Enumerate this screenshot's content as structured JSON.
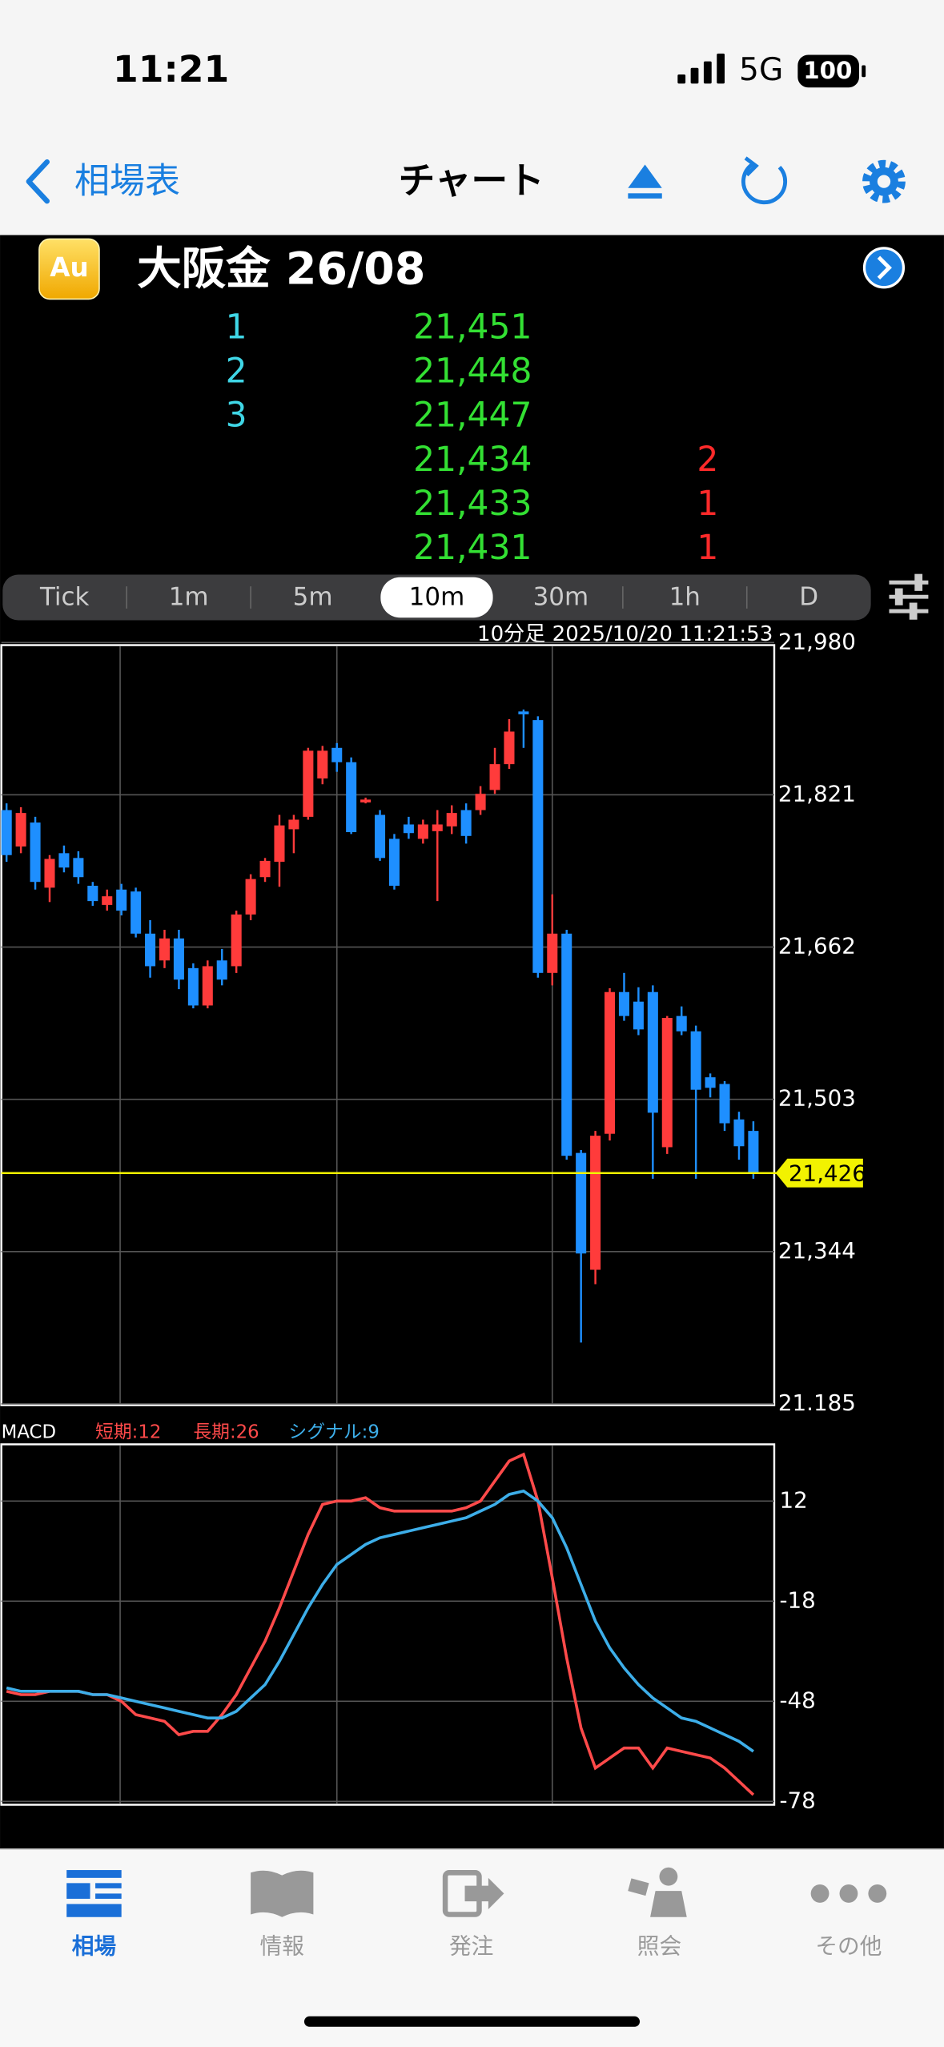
{
  "status": {
    "time": "11:21",
    "network": "5G",
    "battery": 100
  },
  "nav": {
    "back": "相場表",
    "title": "チャート"
  },
  "header": {
    "icon": "Au",
    "name": "大阪金 26/08"
  },
  "board": {
    "ask": [
      {
        "qty": 1,
        "price": "21,451"
      },
      {
        "qty": 2,
        "price": "21,448"
      },
      {
        "qty": 3,
        "price": "21,447"
      }
    ],
    "bid": [
      {
        "price": "21,434",
        "qty": 2
      },
      {
        "price": "21,433",
        "qty": 1
      },
      {
        "price": "21,431",
        "qty": 1
      }
    ]
  },
  "timeframes": {
    "options": [
      "Tick",
      "1m",
      "5m",
      "10m",
      "30m",
      "1h",
      "D"
    ],
    "selected": 3
  },
  "chart_data": [
    {
      "type": "candlestick",
      "caption": "10分足  2025/10/20 11:21:53",
      "up_color": "#ff3b3b",
      "down_color": "#1e8fff",
      "grid": true,
      "ylim": [
        21185,
        21980
      ],
      "yticks": [
        {
          "value": 21980,
          "label": "21,980"
        },
        {
          "value": 21821,
          "label": "21,821"
        },
        {
          "value": 21662,
          "label": "21,662"
        },
        {
          "value": 21503,
          "label": "21,503"
        },
        {
          "value": 21344,
          "label": "21,344"
        },
        {
          "value": 21185,
          "label": "21.185"
        }
      ],
      "current": {
        "value": 21426,
        "label": "21,426",
        "color": "#f2f200"
      },
      "open": [
        21805,
        21767,
        21792,
        21724,
        21760,
        21755,
        21726,
        21706,
        21722,
        21720,
        21676,
        21648,
        21671,
        21640,
        21601,
        21648,
        21642,
        21696,
        21735,
        21751,
        21785,
        21798,
        21838,
        21870,
        21855,
        21813,
        21800,
        21775,
        21790,
        21775,
        21783,
        21788,
        21805,
        21805,
        21826,
        21853,
        21908,
        21899,
        21635,
        21676,
        21447,
        21325,
        21467,
        21615,
        21605,
        21615,
        21453,
        21590,
        21574,
        21526,
        21519,
        21482,
        21470
      ],
      "high": [
        21812,
        21808,
        21798,
        21758,
        21768,
        21762,
        21730,
        21722,
        21728,
        21724,
        21690,
        21680,
        21680,
        21645,
        21648,
        21660,
        21700,
        21738,
        21755,
        21800,
        21800,
        21870,
        21872,
        21875,
        21860,
        21818,
        21805,
        21780,
        21798,
        21795,
        21805,
        21810,
        21812,
        21830,
        21870,
        21900,
        21910,
        21903,
        21717,
        21680,
        21450,
        21470,
        21619,
        21635,
        21620,
        21622,
        21590,
        21600,
        21580,
        21530,
        21522,
        21490,
        21480
      ],
      "low": [
        21751,
        21760,
        21722,
        21709,
        21740,
        21728,
        21705,
        21700,
        21695,
        21672,
        21630,
        21640,
        21618,
        21598,
        21598,
        21622,
        21635,
        21690,
        21730,
        21725,
        21760,
        21795,
        21832,
        21845,
        21780,
        21812,
        21752,
        21722,
        21775,
        21770,
        21710,
        21780,
        21770,
        21800,
        21822,
        21848,
        21870,
        21630,
        21622,
        21440,
        21249,
        21310,
        21460,
        21585,
        21570,
        21420,
        21446,
        21570,
        21420,
        21505,
        21470,
        21440,
        21420
      ],
      "close": [
        21758,
        21802,
        21730,
        21754,
        21745,
        21735,
        21710,
        21715,
        21700,
        21676,
        21642,
        21671,
        21628,
        21601,
        21642,
        21628,
        21696,
        21733,
        21752,
        21789,
        21795,
        21867,
        21867,
        21855,
        21782,
        21816,
        21755,
        21726,
        21781,
        21790,
        21790,
        21802,
        21778,
        21822,
        21853,
        21887,
        21905,
        21635,
        21676,
        21444,
        21342,
        21465,
        21615,
        21590,
        21576,
        21489,
        21588,
        21574,
        21513,
        21515,
        21478,
        21454,
        21426
      ]
    },
    {
      "type": "line",
      "params": [
        {
          "label": "短期:12",
          "color": "#ff4a4a"
        },
        {
          "label": "長期:26",
          "color": "#ff4a4a"
        }
      ],
      "grid": true,
      "ylim": [
        -79,
        29
      ],
      "yticks": [
        12,
        -18,
        -48,
        -78
      ],
      "series": [
        {
          "name": "MACD",
          "color": "#ff4a4a",
          "values": [
            -45,
            -46,
            -46,
            -45,
            -45,
            -45,
            -46,
            -46,
            -48,
            -52,
            -53,
            -54,
            -58,
            -57,
            -57,
            -52,
            -46,
            -38,
            -30,
            -20,
            -9,
            2,
            11,
            12,
            12,
            13,
            10,
            9,
            9,
            9,
            9,
            9,
            10,
            12,
            18,
            24,
            26,
            12,
            -11,
            -35,
            -56,
            -68,
            -65,
            -62,
            -62,
            -68,
            -62,
            -63,
            -64,
            -65,
            -68,
            -72,
            -76
          ]
        },
        {
          "name": "シグナル:9",
          "color": "#3daee9",
          "values": [
            -44,
            -45,
            -45,
            -45,
            -45,
            -45,
            -46,
            -46,
            -47,
            -48,
            -49,
            -50,
            -51,
            -52,
            -53,
            -53,
            -51,
            -47,
            -43,
            -36,
            -28,
            -20,
            -13,
            -7,
            -4,
            -1,
            1,
            2,
            3,
            4,
            5,
            6,
            7,
            9,
            11,
            14,
            15,
            12,
            7,
            -2,
            -13,
            -24,
            -32,
            -38,
            -43,
            -47,
            -50,
            -53,
            -54,
            -56,
            -58,
            -60,
            -63
          ]
        }
      ]
    }
  ],
  "tabs": {
    "items": [
      "相場",
      "情報",
      "発注",
      "照会",
      "その他"
    ],
    "selected": 0
  }
}
